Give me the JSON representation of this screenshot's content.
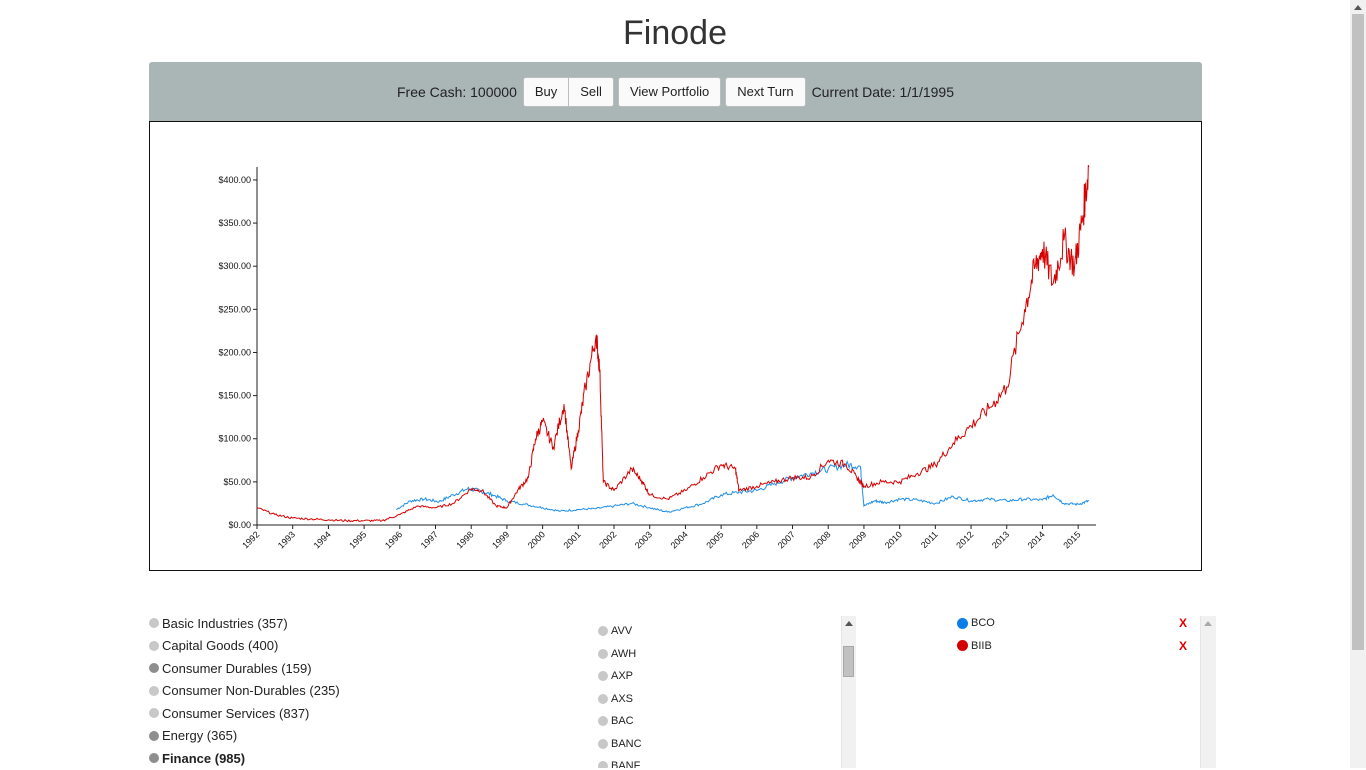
{
  "app": {
    "title": "Finode"
  },
  "toolbar": {
    "free_cash_label": "Free Cash: 100000",
    "buy_label": "Buy",
    "sell_label": "Sell",
    "view_portfolio_label": "View Portfolio",
    "next_turn_label": "Next Turn",
    "current_date_label": "Current Date: 1/1/1995"
  },
  "sectors": [
    {
      "label": "Basic Industries (357)",
      "dark": false,
      "bold": false
    },
    {
      "label": "Capital Goods (400)",
      "dark": false,
      "bold": false
    },
    {
      "label": "Consumer Durables (159)",
      "dark": true,
      "bold": false
    },
    {
      "label": "Consumer Non-Durables (235)",
      "dark": false,
      "bold": false
    },
    {
      "label": "Consumer Services (837)",
      "dark": false,
      "bold": false
    },
    {
      "label": "Energy (365)",
      "dark": true,
      "bold": false
    },
    {
      "label": "Finance (985)",
      "dark": true,
      "bold": true
    }
  ],
  "stocks": [
    "AVV",
    "AWH",
    "AXP",
    "AXS",
    "BAC",
    "BANC",
    "BANF"
  ],
  "selected": [
    {
      "ticker": "BCO",
      "color": "#0a7ee6",
      "remove": "X"
    },
    {
      "ticker": "BIIB",
      "color": "#d40000",
      "remove": "X"
    }
  ],
  "colors": {
    "toolbar_bg": "#aab5b5",
    "series_bco": "#1e8fe8",
    "series_biib": "#d60000"
  },
  "chart_data": {
    "type": "line",
    "y_ticks": [
      "$0.00",
      "$50.00",
      "$100.00",
      "$150.00",
      "$200.00",
      "$250.00",
      "$300.00",
      "$350.00",
      "$400.00"
    ],
    "x_ticks": [
      "1992",
      "1993",
      "1994",
      "1995",
      "1996",
      "1997",
      "1998",
      "1999",
      "2000",
      "2001",
      "2002",
      "2003",
      "2004",
      "2005",
      "2006",
      "2007",
      "2008",
      "2009",
      "2010",
      "2011",
      "2012",
      "2013",
      "2014",
      "2015"
    ],
    "ylim": [
      0,
      415
    ],
    "xlim": [
      1992,
      2015.5
    ],
    "grid": false,
    "series": [
      {
        "name": "BCO",
        "color": "#1e8fe8",
        "points": [
          [
            1995.9,
            18
          ],
          [
            1996.3,
            28
          ],
          [
            1996.7,
            30
          ],
          [
            1997.1,
            27
          ],
          [
            1997.5,
            35
          ],
          [
            1997.9,
            42
          ],
          [
            1998.2,
            40
          ],
          [
            1998.6,
            35
          ],
          [
            1999.0,
            28
          ],
          [
            1999.5,
            24
          ],
          [
            2000.0,
            20
          ],
          [
            2000.5,
            16
          ],
          [
            2001.0,
            18
          ],
          [
            2001.5,
            19
          ],
          [
            2002.0,
            22
          ],
          [
            2002.5,
            25
          ],
          [
            2003.0,
            20
          ],
          [
            2003.5,
            15
          ],
          [
            2004.0,
            20
          ],
          [
            2004.5,
            25
          ],
          [
            2005.0,
            35
          ],
          [
            2005.5,
            38
          ],
          [
            2006.0,
            40
          ],
          [
            2006.5,
            48
          ],
          [
            2007.0,
            55
          ],
          [
            2007.5,
            60
          ],
          [
            2008.0,
            65
          ],
          [
            2008.5,
            70
          ],
          [
            2008.9,
            68
          ],
          [
            2009.0,
            22
          ],
          [
            2009.3,
            28
          ],
          [
            2009.6,
            26
          ],
          [
            2010.0,
            30
          ],
          [
            2010.5,
            29
          ],
          [
            2011.0,
            25
          ],
          [
            2011.5,
            33
          ],
          [
            2012.0,
            28
          ],
          [
            2012.5,
            30
          ],
          [
            2013.0,
            28
          ],
          [
            2013.5,
            30
          ],
          [
            2014.0,
            29
          ],
          [
            2014.3,
            35
          ],
          [
            2014.6,
            25
          ],
          [
            2015.0,
            24
          ],
          [
            2015.3,
            28
          ]
        ]
      },
      {
        "name": "BIIB",
        "color": "#d60000",
        "points": [
          [
            1992.0,
            20
          ],
          [
            1992.5,
            12
          ],
          [
            1993.0,
            8
          ],
          [
            1993.5,
            7
          ],
          [
            1994.0,
            6
          ],
          [
            1994.5,
            5
          ],
          [
            1995.0,
            5
          ],
          [
            1995.5,
            5
          ],
          [
            1996.0,
            12
          ],
          [
            1996.5,
            22
          ],
          [
            1997.0,
            20
          ],
          [
            1997.5,
            25
          ],
          [
            1998.0,
            42
          ],
          [
            1998.3,
            40
          ],
          [
            1998.7,
            22
          ],
          [
            1999.0,
            20
          ],
          [
            1999.3,
            40
          ],
          [
            1999.6,
            55
          ],
          [
            1999.8,
            100
          ],
          [
            2000.0,
            120
          ],
          [
            2000.3,
            90
          ],
          [
            2000.6,
            140
          ],
          [
            2000.8,
            65
          ],
          [
            2001.0,
            110
          ],
          [
            2001.2,
            160
          ],
          [
            2001.5,
            220
          ],
          [
            2001.6,
            180
          ],
          [
            2001.7,
            50
          ],
          [
            2002.0,
            40
          ],
          [
            2002.5,
            65
          ],
          [
            2002.8,
            50
          ],
          [
            2003.0,
            35
          ],
          [
            2003.5,
            30
          ],
          [
            2004.0,
            40
          ],
          [
            2004.5,
            55
          ],
          [
            2005.0,
            70
          ],
          [
            2005.4,
            65
          ],
          [
            2005.5,
            40
          ],
          [
            2006.0,
            45
          ],
          [
            2006.5,
            50
          ],
          [
            2007.0,
            55
          ],
          [
            2007.5,
            55
          ],
          [
            2008.0,
            75
          ],
          [
            2008.5,
            70
          ],
          [
            2008.8,
            55
          ],
          [
            2009.0,
            45
          ],
          [
            2009.5,
            50
          ],
          [
            2010.0,
            50
          ],
          [
            2010.5,
            60
          ],
          [
            2011.0,
            70
          ],
          [
            2011.5,
            95
          ],
          [
            2012.0,
            115
          ],
          [
            2012.5,
            135
          ],
          [
            2013.0,
            160
          ],
          [
            2013.5,
            250
          ],
          [
            2013.8,
            300
          ],
          [
            2014.0,
            320
          ],
          [
            2014.3,
            280
          ],
          [
            2014.6,
            330
          ],
          [
            2014.9,
            300
          ],
          [
            2015.1,
            350
          ],
          [
            2015.3,
            415
          ]
        ]
      }
    ]
  }
}
